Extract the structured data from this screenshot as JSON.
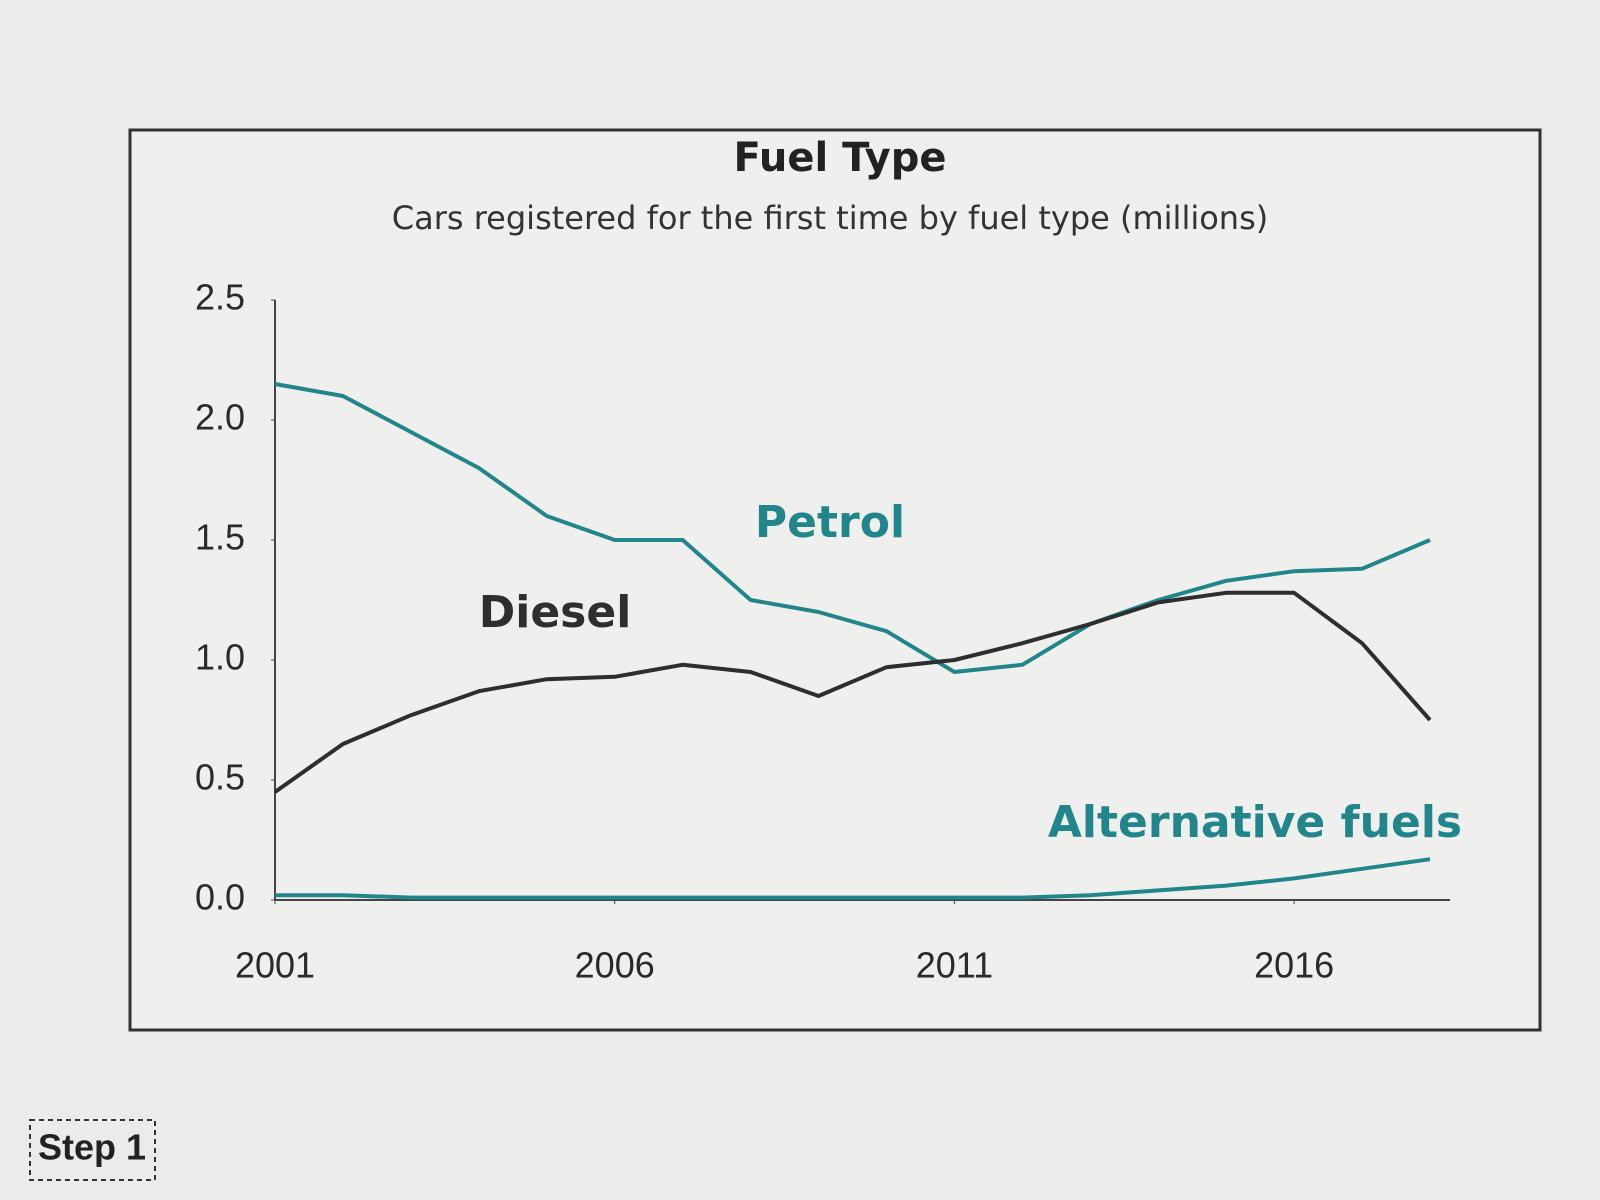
{
  "page": {
    "step_label": "Step 1"
  },
  "chart_data": {
    "type": "line",
    "title": "Fuel Type",
    "subtitle": "Cars registered for the first time by fuel type (millions)",
    "x": [
      2001,
      2002,
      2003,
      2004,
      2005,
      2006,
      2007,
      2008,
      2009,
      2010,
      2011,
      2012,
      2013,
      2014,
      2015,
      2016,
      2017,
      2018
    ],
    "series": [
      {
        "name": "Petrol",
        "color": "#21868c",
        "values": [
          2.15,
          2.1,
          1.95,
          1.8,
          1.6,
          1.5,
          1.5,
          1.25,
          1.2,
          1.12,
          0.95,
          0.98,
          1.15,
          1.25,
          1.33,
          1.37,
          1.38,
          1.5
        ]
      },
      {
        "name": "Diesel",
        "color": "#2e2e2e",
        "values": [
          0.45,
          0.65,
          0.77,
          0.87,
          0.92,
          0.93,
          0.98,
          0.95,
          0.85,
          0.97,
          1.0,
          1.07,
          1.15,
          1.24,
          1.28,
          1.28,
          1.07,
          0.75
        ]
      },
      {
        "name": "Alternative fuels",
        "color": "#21868c",
        "values": [
          0.02,
          0.02,
          0.01,
          0.01,
          0.01,
          0.01,
          0.01,
          0.01,
          0.01,
          0.01,
          0.01,
          0.01,
          0.02,
          0.04,
          0.06,
          0.09,
          0.13,
          0.17
        ]
      }
    ],
    "xlim": [
      2001,
      2018
    ],
    "xticks": [
      2001,
      2006,
      2011,
      2016
    ],
    "ylim": [
      0,
      2.5
    ],
    "yticks": [
      {
        "value": 0,
        "label": "0.0"
      },
      0.5,
      {
        "value": 1,
        "label": "1.0"
      },
      1.5,
      {
        "value": 2,
        "label": "2.0"
      },
      2.5
    ],
    "grid": false
  }
}
